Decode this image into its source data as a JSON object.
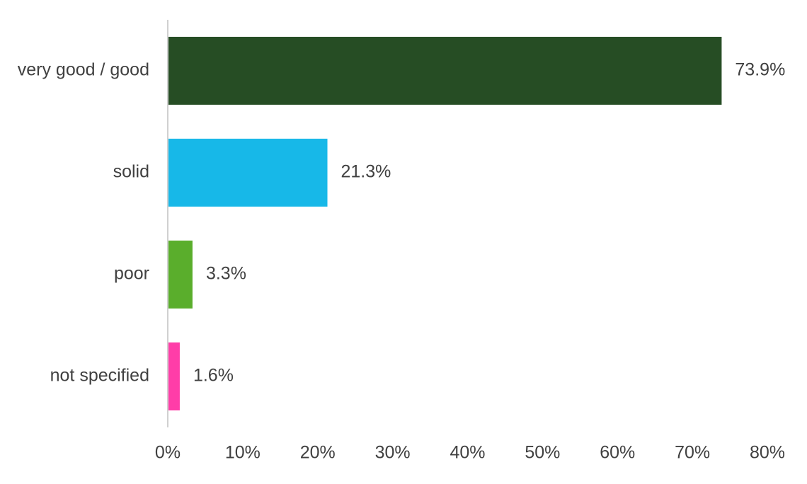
{
  "chart_data": {
    "type": "bar",
    "orientation": "horizontal",
    "categories": [
      "very good / good",
      "solid",
      "poor",
      "not specified"
    ],
    "values": [
      73.9,
      21.3,
      3.3,
      1.6
    ],
    "data_labels": [
      "73.9%",
      "21.3%",
      "3.3%",
      "1.6%"
    ],
    "colors": [
      "#264d24",
      "#17b8e8",
      "#5aae2c",
      "#ff3da8"
    ],
    "title": "",
    "xlabel": "",
    "ylabel": "",
    "xlim": [
      0,
      80
    ],
    "xticks": [
      0,
      10,
      20,
      30,
      40,
      50,
      60,
      70,
      80
    ],
    "xtick_labels": [
      "0%",
      "10%",
      "20%",
      "30%",
      "40%",
      "50%",
      "60%",
      "70%",
      "80%"
    ],
    "grid": false,
    "legend": "none",
    "axis_color": "#d0d0d0",
    "text_color": "#404040"
  }
}
